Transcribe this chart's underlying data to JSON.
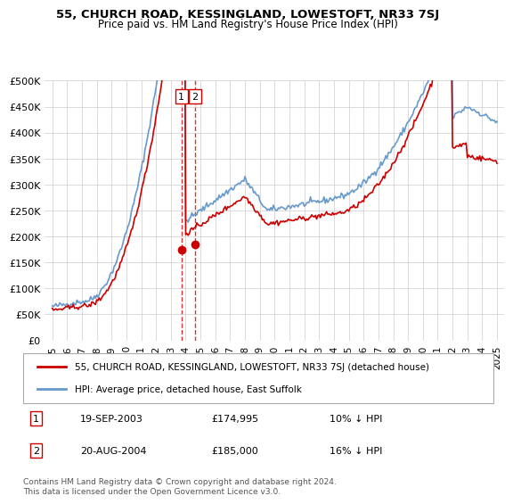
{
  "title1": "55, CHURCH ROAD, KESSINGLAND, LOWESTOFT, NR33 7SJ",
  "title2": "Price paid vs. HM Land Registry's House Price Index (HPI)",
  "legend_entries": [
    "55, CHURCH ROAD, KESSINGLAND, LOWESTOFT, NR33 7SJ (detached house)",
    "HPI: Average price, detached house, East Suffolk"
  ],
  "transaction1": {
    "label": "1",
    "date": "19-SEP-2003",
    "price": "£174,995",
    "hpi": "10% ↓ HPI"
  },
  "transaction2": {
    "label": "2",
    "date": "20-AUG-2004",
    "price": "£185,000",
    "hpi": "16% ↓ HPI"
  },
  "footnote": "Contains HM Land Registry data © Crown copyright and database right 2024.\nThis data is licensed under the Open Government Licence v3.0.",
  "hpi_color": "#6699cc",
  "price_color": "#cc0000",
  "dashed_color": "#cc0000",
  "ylim": [
    0,
    500000
  ],
  "yticks": [
    0,
    50000,
    100000,
    150000,
    200000,
    250000,
    300000,
    350000,
    400000,
    450000,
    500000
  ],
  "ytick_labels": [
    "£0",
    "£50K",
    "£100K",
    "£150K",
    "£200K",
    "£250K",
    "£300K",
    "£350K",
    "£400K",
    "£450K",
    "£500K"
  ],
  "xlim_start": 1994.5,
  "xlim_end": 2025.5
}
